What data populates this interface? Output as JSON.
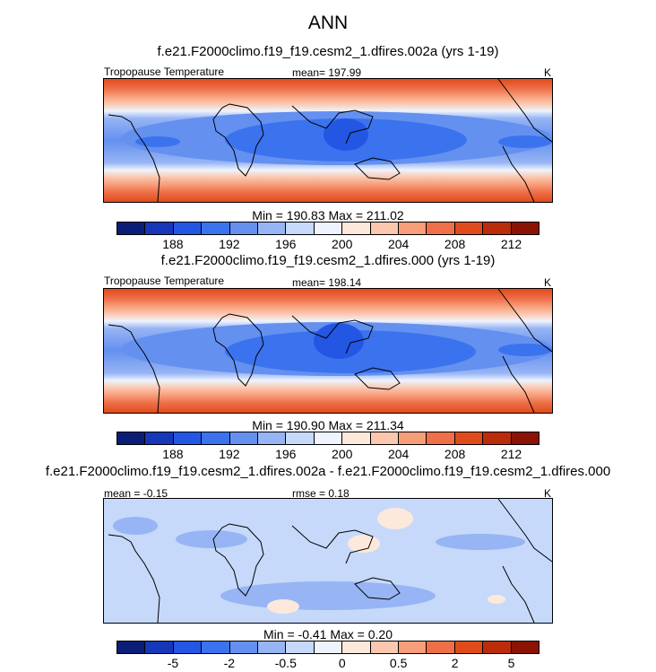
{
  "figure": {
    "title": "ANN",
    "panels": [
      {
        "case": "f.e21.F2000climo.f19_f19.cesm2_1.dfires.002a (yrs 1-19)",
        "variable": "Tropopause Temperature",
        "stat": "mean= 197.99",
        "units": "K",
        "minmax": "Min = 190.83 Max = 211.02",
        "colorbar_colors": [
          "#0a1e78",
          "#1537b8",
          "#2456e4",
          "#3b73ee",
          "#6490f0",
          "#97b5f4",
          "#c6d9fa",
          "#eef3fd",
          "#fde8dc",
          "#fbc7ae",
          "#f79d7a",
          "#ef7048",
          "#e04b1c",
          "#bb2c0a",
          "#8a1304"
        ],
        "colorbar_ticks": [
          "188",
          "192",
          "196",
          "200",
          "204",
          "208",
          "212"
        ]
      },
      {
        "case": "f.e21.F2000climo.f19_f19.cesm2_1.dfires.000 (yrs 1-19)",
        "variable": "Tropopause Temperature",
        "stat": "mean= 198.14",
        "units": "K",
        "minmax": "Min = 190.90 Max = 211.34",
        "colorbar_colors": [
          "#0a1e78",
          "#1537b8",
          "#2456e4",
          "#3b73ee",
          "#6490f0",
          "#97b5f4",
          "#c6d9fa",
          "#eef3fd",
          "#fde8dc",
          "#fbc7ae",
          "#f79d7a",
          "#ef7048",
          "#e04b1c",
          "#bb2c0a",
          "#8a1304"
        ],
        "colorbar_ticks": [
          "188",
          "192",
          "196",
          "200",
          "204",
          "208",
          "212"
        ]
      },
      {
        "case": "f.e21.F2000climo.f19_f19.cesm2_1.dfires.002a - f.e21.F2000climo.f19_f19.cesm2_1.dfires.000",
        "stat_left": "mean =  -0.15",
        "stat": "rmse =  0.18",
        "units": "K",
        "minmax": "Min =  -0.41 Max =   0.20",
        "colorbar_colors": [
          "#0a1e78",
          "#1537b8",
          "#2456e4",
          "#3b73ee",
          "#6490f0",
          "#97b5f4",
          "#c6d9fa",
          "#eef3fd",
          "#fde8dc",
          "#fbc7ae",
          "#f79d7a",
          "#ef7048",
          "#e04b1c",
          "#bb2c0a",
          "#8a1304"
        ],
        "colorbar_ticks": [
          "-5",
          "-2",
          "-0.5",
          "0",
          "0.5",
          "2",
          "5"
        ]
      }
    ]
  }
}
